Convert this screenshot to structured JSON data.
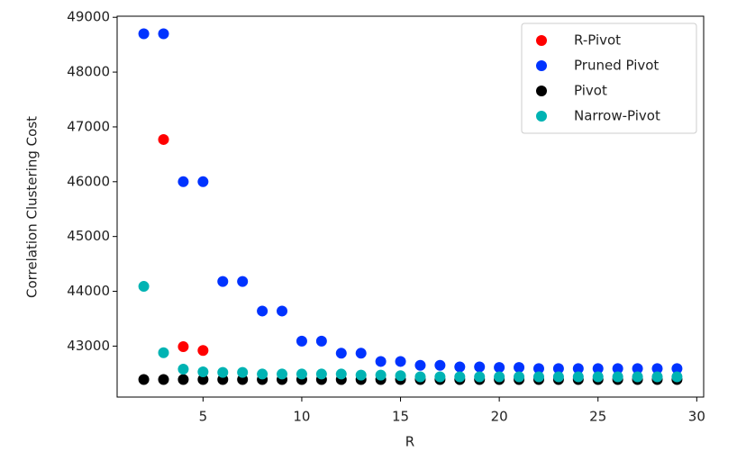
{
  "chart_data": {
    "type": "scatter",
    "x_label": "R",
    "y_label": "Correlation Clustering Cost",
    "xlim": [
      0.65,
      30.35
    ],
    "ylim": [
      42070,
      49020
    ],
    "xticks": [
      5,
      10,
      15,
      20,
      25,
      30
    ],
    "yticks": [
      43000,
      44000,
      45000,
      46000,
      47000,
      48000,
      49000
    ],
    "legend": "upper right",
    "series": [
      {
        "name": "R-Pivot",
        "color": "#ff0000",
        "x": [
          3,
          4,
          5
        ],
        "values": [
          46770,
          42990,
          42920
        ]
      },
      {
        "name": "Pruned Pivot",
        "color": "#0033ff",
        "x": [
          2,
          3,
          4,
          5,
          6,
          7,
          8,
          9,
          10,
          11,
          12,
          13,
          14,
          15,
          16,
          17,
          18,
          19,
          20,
          21,
          22,
          23,
          24,
          25,
          26,
          27,
          28,
          29
        ],
        "values": [
          48700,
          48700,
          46000,
          46000,
          44180,
          44180,
          43640,
          43640,
          43090,
          43090,
          42870,
          42870,
          42720,
          42720,
          42650,
          42650,
          42620,
          42620,
          42610,
          42610,
          42590,
          42590,
          42590,
          42590,
          42590,
          42590,
          42590,
          42590
        ]
      },
      {
        "name": "Pivot",
        "color": "#000000",
        "x": [
          2,
          3,
          4,
          5,
          6,
          7,
          8,
          9,
          10,
          11,
          12,
          13,
          14,
          15,
          16,
          17,
          18,
          19,
          20,
          21,
          22,
          23,
          24,
          25,
          26,
          27,
          28,
          29
        ],
        "values": [
          42390,
          42390,
          42390,
          42390,
          42390,
          42390,
          42390,
          42390,
          42390,
          42390,
          42390,
          42390,
          42390,
          42390,
          42390,
          42390,
          42390,
          42390,
          42390,
          42390,
          42390,
          42390,
          42390,
          42390,
          42390,
          42390,
          42390,
          42390
        ]
      },
      {
        "name": "Narrow-Pivot",
        "color": "#00b3b3",
        "x": [
          2,
          3,
          4,
          5,
          6,
          7,
          8,
          9,
          10,
          11,
          12,
          13,
          14,
          15,
          16,
          17,
          18,
          19,
          20,
          21,
          22,
          23,
          24,
          25,
          26,
          27,
          28,
          29
        ],
        "values": [
          44090,
          42880,
          42580,
          42530,
          42520,
          42520,
          42490,
          42490,
          42490,
          42490,
          42490,
          42470,
          42470,
          42460,
          42440,
          42440,
          42440,
          42440,
          42440,
          42440,
          42440,
          42440,
          42440,
          42440,
          42440,
          42440,
          42440,
          42440
        ]
      }
    ]
  }
}
